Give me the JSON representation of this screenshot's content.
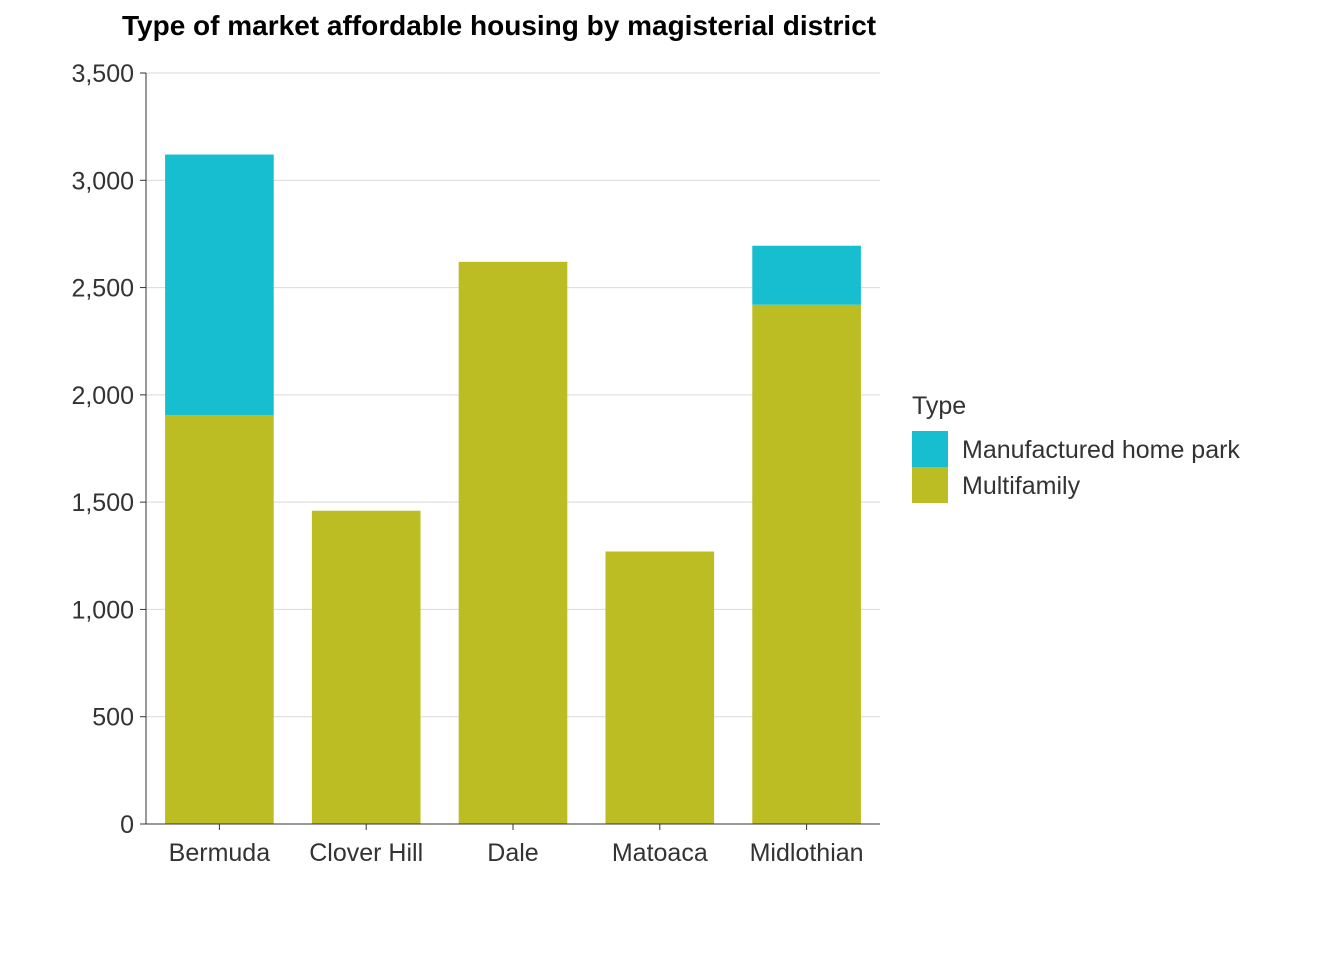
{
  "chart_data": {
    "type": "bar",
    "stacked": true,
    "title": "Type of market affordable housing by magisterial district",
    "xlabel": "",
    "ylabel": "",
    "categories": [
      "Bermuda",
      "Clover Hill",
      "Dale",
      "Matoaca",
      "Midlothian"
    ],
    "series": [
      {
        "name": "Multifamily",
        "color": "#BCBD22",
        "values": [
          1905,
          1460,
          2620,
          1270,
          2420
        ]
      },
      {
        "name": "Manufactured home park",
        "color": "#17BECF",
        "values": [
          1215,
          0,
          0,
          0,
          275
        ]
      }
    ],
    "ylim": [
      0,
      3500
    ],
    "yticks": [
      0,
      500,
      1000,
      1500,
      2000,
      2500,
      3000,
      3500
    ],
    "ytick_labels": [
      "0",
      "500",
      "1,000",
      "1,500",
      "2,000",
      "2,500",
      "3,000",
      "3,500"
    ],
    "grid": true,
    "legend": {
      "title": "Type",
      "placement": "right",
      "entries": [
        {
          "label": "Manufactured home park",
          "color": "#17BECF"
        },
        {
          "label": "Multifamily",
          "color": "#BCBD22"
        }
      ]
    }
  }
}
